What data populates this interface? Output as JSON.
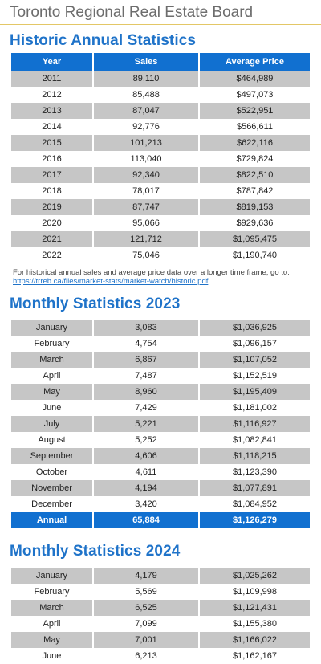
{
  "header": {
    "title": "Toronto Regional Real Estate Board"
  },
  "historic": {
    "title": "Historic Annual Statistics",
    "columns": [
      "Year",
      "Sales",
      "Average Price"
    ],
    "rows": [
      [
        "2011",
        "89,110",
        "$464,989"
      ],
      [
        "2012",
        "85,488",
        "$497,073"
      ],
      [
        "2013",
        "87,047",
        "$522,951"
      ],
      [
        "2014",
        "92,776",
        "$566,611"
      ],
      [
        "2015",
        "101,213",
        "$622,116"
      ],
      [
        "2016",
        "113,040",
        "$729,824"
      ],
      [
        "2017",
        "92,340",
        "$822,510"
      ],
      [
        "2018",
        "78,017",
        "$787,842"
      ],
      [
        "2019",
        "87,747",
        "$819,153"
      ],
      [
        "2020",
        "95,066",
        "$929,636"
      ],
      [
        "2021",
        "121,712",
        "$1,095,475"
      ],
      [
        "2022",
        "75,046",
        "$1,190,740"
      ]
    ],
    "note": "For historical annual sales and average price data over a longer time frame, go to:",
    "link": "https://trreb.ca/files/market-stats/market-watch/historic.pdf"
  },
  "monthly_2023": {
    "title": "Monthly Statistics 2023",
    "rows": [
      [
        "January",
        "3,083",
        "$1,036,925"
      ],
      [
        "February",
        "4,754",
        "$1,096,157"
      ],
      [
        "March",
        "6,867",
        "$1,107,052"
      ],
      [
        "April",
        "7,487",
        "$1,152,519"
      ],
      [
        "May",
        "8,960",
        "$1,195,409"
      ],
      [
        "June",
        "7,429",
        "$1,181,002"
      ],
      [
        "July",
        "5,221",
        "$1,116,927"
      ],
      [
        "August",
        "5,252",
        "$1,082,841"
      ],
      [
        "September",
        "4,606",
        "$1,118,215"
      ],
      [
        "October",
        "4,611",
        "$1,123,390"
      ],
      [
        "November",
        "4,194",
        "$1,077,891"
      ],
      [
        "December",
        "3,420",
        "$1,084,952"
      ]
    ],
    "annual": [
      "Annual",
      "65,884",
      "$1,126,279"
    ]
  },
  "monthly_2024": {
    "title": "Monthly Statistics 2024",
    "rows": [
      [
        "January",
        "4,179",
        "$1,025,262"
      ],
      [
        "February",
        "5,569",
        "$1,109,998"
      ],
      [
        "March",
        "6,525",
        "$1,121,431"
      ],
      [
        "April",
        "7,099",
        "$1,155,380"
      ],
      [
        "May",
        "7,001",
        "$1,166,022"
      ],
      [
        "June",
        "6,213",
        "$1,162,167"
      ]
    ]
  }
}
